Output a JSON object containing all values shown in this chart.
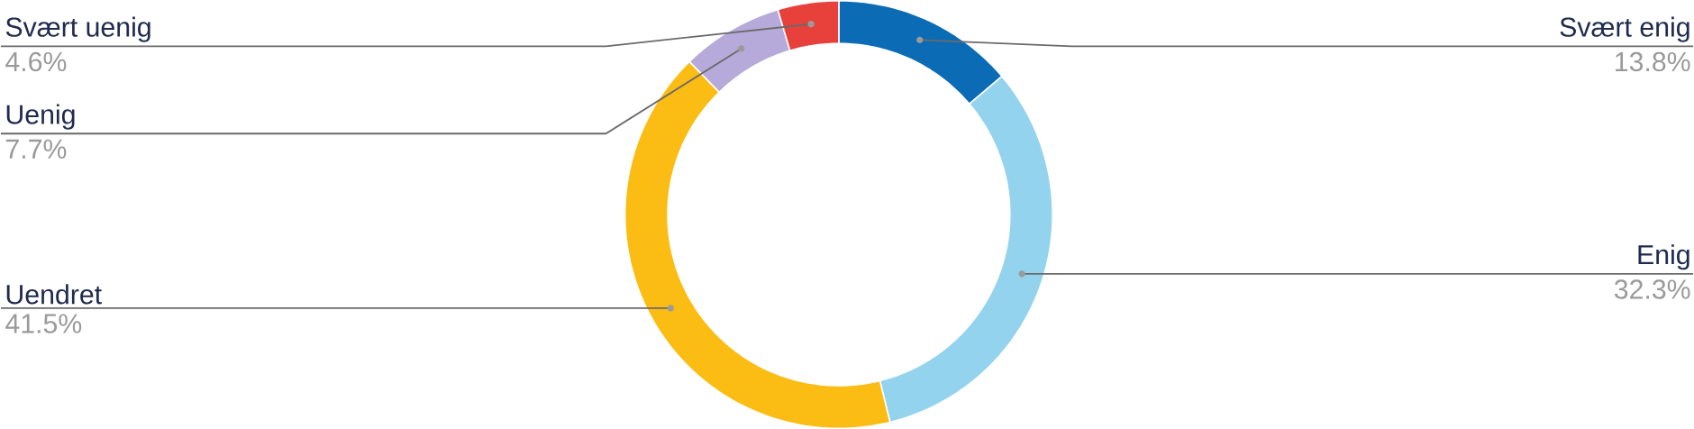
{
  "chart_data": {
    "type": "donut",
    "categories": [
      "Svært enig",
      "Enig",
      "Uendret",
      "Uenig",
      "Svært uenig"
    ],
    "values": [
      13.8,
      32.3,
      41.5,
      7.7,
      4.6
    ],
    "colors": [
      "#0b6cb5",
      "#93d3ee",
      "#fbbc13",
      "#b6aadb",
      "#e8413c"
    ],
    "value_labels": [
      "13.8%",
      "32.3%",
      "41.5%",
      "7.7%",
      "4.6%"
    ]
  }
}
